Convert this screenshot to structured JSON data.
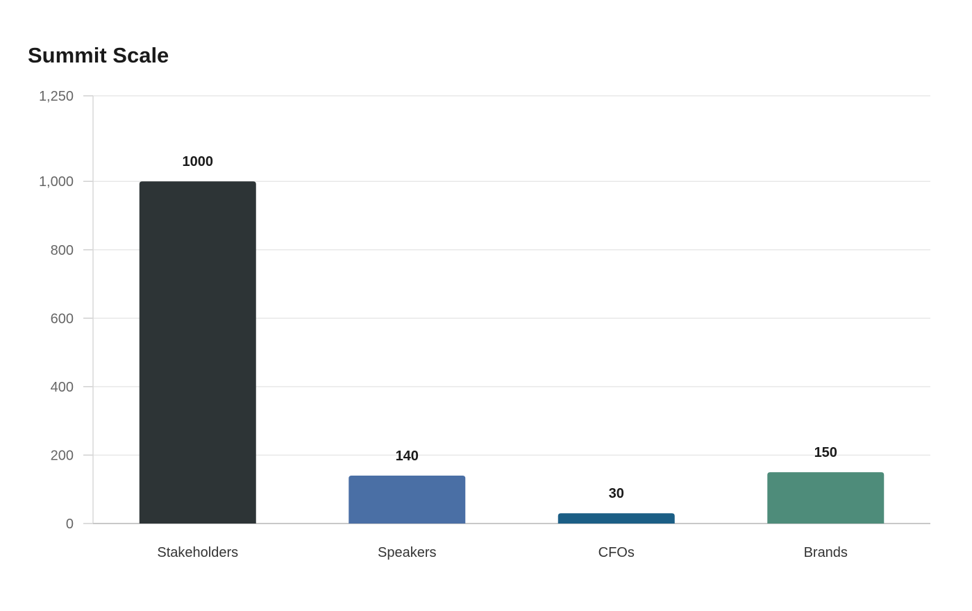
{
  "chart_data": {
    "type": "bar",
    "title": "Summit Scale",
    "categories": [
      "Stakeholders",
      "Speakers",
      "CFOs",
      "Brands"
    ],
    "values": [
      1000,
      140,
      30,
      150
    ],
    "value_labels": [
      "1000",
      "140",
      "30",
      "150"
    ],
    "colors": [
      "#2d3436",
      "#4a6fa5",
      "#1b5e85",
      "#4e8c7a"
    ],
    "yticks": [
      0,
      200,
      400,
      600,
      800,
      1000,
      1250
    ],
    "ytick_labels": [
      "0",
      "200",
      "400",
      "600",
      "800",
      "1,000",
      "1,250"
    ],
    "ylim": [
      0,
      1250
    ],
    "grid": true,
    "legend": "none"
  }
}
